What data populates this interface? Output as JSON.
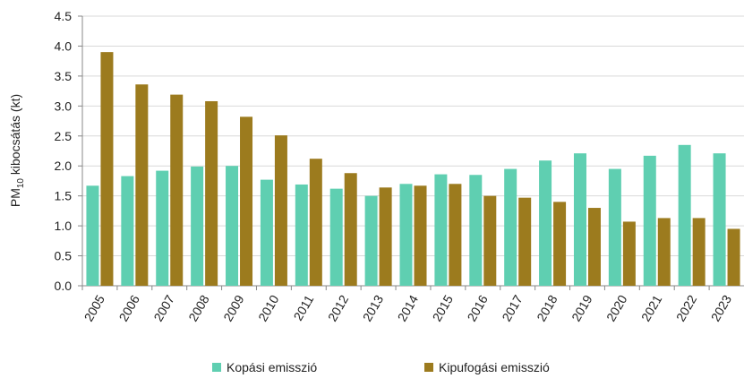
{
  "chart_data": {
    "type": "bar",
    "y_label": {
      "text": "PM",
      "sub": "10",
      "rest": " kibocsátás (kt)"
    },
    "categories": [
      "2005",
      "2006",
      "2007",
      "2008",
      "2009",
      "2010",
      "2011",
      "2012",
      "2013",
      "2014",
      "2015",
      "2016",
      "2017",
      "2018",
      "2019",
      "2020",
      "2021",
      "2022",
      "2023"
    ],
    "series": [
      {
        "name": "Kopási emisszió",
        "color": "#5fcfb1",
        "values": [
          1.67,
          1.83,
          1.92,
          1.99,
          2.0,
          1.77,
          1.69,
          1.62,
          1.5,
          1.7,
          1.86,
          1.85,
          1.95,
          2.09,
          2.21,
          1.95,
          2.17,
          2.35,
          2.21
        ]
      },
      {
        "name": "Kipufogási emisszió",
        "color": "#9c7b1e",
        "values": [
          3.9,
          3.36,
          3.19,
          3.08,
          2.82,
          2.51,
          2.12,
          1.88,
          1.64,
          1.67,
          1.7,
          1.5,
          1.47,
          1.4,
          1.3,
          1.07,
          1.13,
          1.13,
          0.95
        ]
      }
    ],
    "ylim": [
      0,
      4.5
    ],
    "yticks": [
      {
        "value": 0,
        "label": "0.0"
      },
      0.5,
      {
        "value": 1,
        "label": "1.0"
      },
      1.5,
      {
        "value": 2,
        "label": "2.0"
      },
      2.5,
      {
        "value": 3,
        "label": "3.0"
      },
      3.5,
      {
        "value": 4,
        "label": "4.0"
      },
      4.5
    ],
    "grid": true
  }
}
